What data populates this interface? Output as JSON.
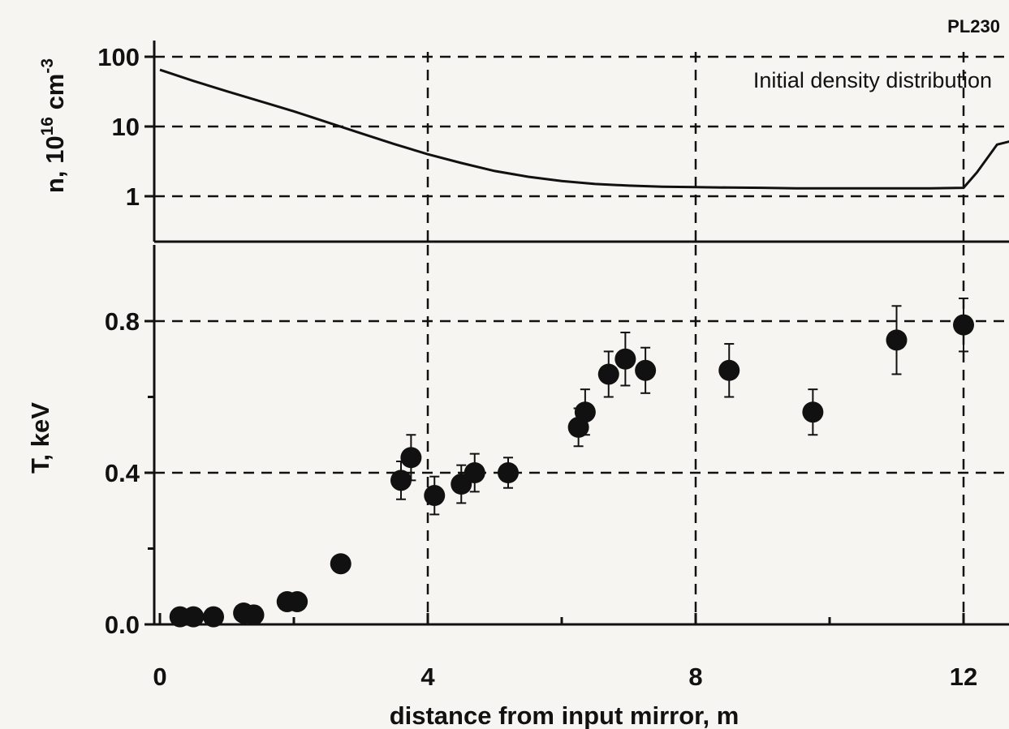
{
  "corner_label": "PL230",
  "chart_data": [
    {
      "type": "line",
      "title": "Initial density distribution",
      "ylabel": "n, 10^16 cm^-3",
      "ylabel_parts": {
        "base": "n, 10",
        "exp1": "16",
        "unit": " cm",
        "exp2": "-3"
      },
      "yscale": "log",
      "ylim": [
        0.9,
        100
      ],
      "xlim": [
        0,
        13
      ],
      "yticks": [
        1,
        10,
        100
      ],
      "ytick_labels": [
        "1",
        "10",
        "100"
      ],
      "grid": true,
      "series": [
        {
          "x": [
            0,
            0.5,
            1,
            1.5,
            2,
            2.5,
            3,
            3.5,
            4,
            4.5,
            5,
            5.5,
            6,
            6.5,
            7,
            7.5,
            8,
            8.5,
            9,
            9.5,
            10,
            10.5,
            11,
            11.5,
            12,
            12.2,
            12.5,
            12.8,
            13
          ],
          "y": [
            65,
            45,
            32,
            23,
            16.5,
            11.5,
            8,
            5.6,
            4.0,
            3.0,
            2.3,
            1.9,
            1.65,
            1.5,
            1.42,
            1.37,
            1.35,
            1.33,
            1.32,
            1.3,
            1.3,
            1.3,
            1.3,
            1.3,
            1.32,
            2.2,
            5.5,
            6.5,
            7
          ]
        }
      ]
    },
    {
      "type": "scatter",
      "title": "",
      "xlabel": "distance from input mirror, m",
      "ylabel": "T, keV",
      "xlim": [
        0,
        13
      ],
      "ylim": [
        -0.05,
        1.0
      ],
      "xticks": [
        0,
        4,
        8,
        12
      ],
      "xtick_labels": [
        "0",
        "4",
        "8",
        "12"
      ],
      "yticks": [
        0.0,
        0.4,
        0.8
      ],
      "ytick_labels": [
        "0.0",
        "0.4",
        "0.8"
      ],
      "grid": true,
      "series": [
        {
          "x": [
            0.3,
            0.5,
            0.8,
            1.25,
            1.4,
            1.9,
            2.05,
            2.7,
            3.6,
            3.75,
            4.1,
            4.5,
            4.7,
            5.2,
            6.25,
            6.35,
            6.7,
            6.95,
            7.25,
            8.5,
            9.75,
            11.0,
            12.0
          ],
          "y": [
            0.02,
            0.02,
            0.02,
            0.03,
            0.025,
            0.06,
            0.06,
            0.16,
            0.38,
            0.44,
            0.34,
            0.37,
            0.4,
            0.4,
            0.52,
            0.56,
            0.66,
            0.7,
            0.67,
            0.67,
            0.56,
            0.75,
            0.79
          ],
          "err": [
            0,
            0,
            0,
            0,
            0,
            0,
            0,
            0,
            0.05,
            0.06,
            0.05,
            0.05,
            0.05,
            0.04,
            0.05,
            0.06,
            0.06,
            0.07,
            0.06,
            0.07,
            0.06,
            0.09,
            0.07
          ]
        }
      ]
    }
  ]
}
